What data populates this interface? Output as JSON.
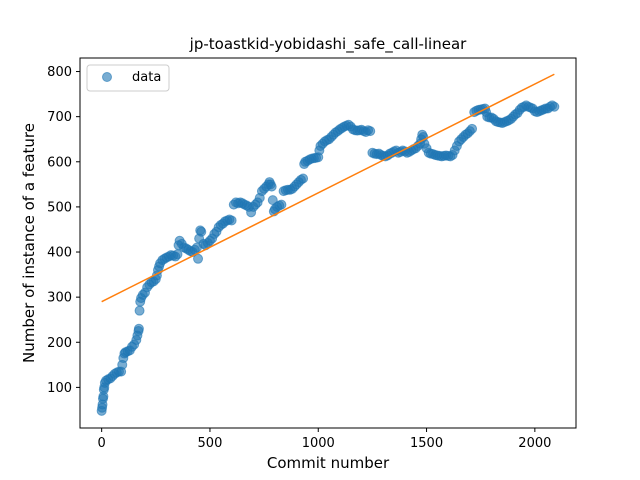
{
  "chart_data": {
    "type": "scatter",
    "title": "jp-toastkid-yobidashi_safe_call-linear",
    "xlabel": "Commit number",
    "ylabel": "Number of instance of a feature",
    "xlim": [
      -100,
      2190
    ],
    "ylim": [
      10,
      830
    ],
    "xticks": [
      0,
      500,
      1000,
      1500,
      2000
    ],
    "yticks": [
      100,
      200,
      300,
      400,
      500,
      600,
      700,
      800
    ],
    "legend": {
      "position": "top-left",
      "entries": [
        "data"
      ]
    },
    "grid": false,
    "colors": {
      "data": "#1f77b4",
      "fit": "#ff7f0e"
    },
    "series": [
      {
        "name": "data",
        "kind": "scatter",
        "points": [
          [
            0,
            48
          ],
          [
            2,
            55
          ],
          [
            4,
            62
          ],
          [
            6,
            75
          ],
          [
            8,
            80
          ],
          [
            10,
            95
          ],
          [
            12,
            100
          ],
          [
            15,
            110
          ],
          [
            20,
            115
          ],
          [
            30,
            118
          ],
          [
            40,
            120
          ],
          [
            50,
            125
          ],
          [
            60,
            130
          ],
          [
            70,
            133
          ],
          [
            80,
            135
          ],
          [
            90,
            135
          ],
          [
            95,
            150
          ],
          [
            100,
            165
          ],
          [
            105,
            175
          ],
          [
            110,
            178
          ],
          [
            120,
            180
          ],
          [
            130,
            182
          ],
          [
            140,
            190
          ],
          [
            150,
            195
          ],
          [
            160,
            205
          ],
          [
            165,
            215
          ],
          [
            170,
            225
          ],
          [
            172,
            230
          ],
          [
            175,
            270
          ],
          [
            178,
            290
          ],
          [
            182,
            298
          ],
          [
            190,
            305
          ],
          [
            200,
            310
          ],
          [
            210,
            322
          ],
          [
            220,
            328
          ],
          [
            230,
            333
          ],
          [
            240,
            335
          ],
          [
            250,
            340
          ],
          [
            255,
            348
          ],
          [
            260,
            360
          ],
          [
            265,
            368
          ],
          [
            270,
            375
          ],
          [
            280,
            382
          ],
          [
            290,
            385
          ],
          [
            300,
            388
          ],
          [
            310,
            390
          ],
          [
            320,
            393
          ],
          [
            330,
            392
          ],
          [
            340,
            390
          ],
          [
            350,
            395
          ],
          [
            355,
            415
          ],
          [
            360,
            425
          ],
          [
            370,
            418
          ],
          [
            380,
            410
          ],
          [
            390,
            408
          ],
          [
            400,
            405
          ],
          [
            410,
            402
          ],
          [
            420,
            400
          ],
          [
            430,
            405
          ],
          [
            440,
            410
          ],
          [
            445,
            385
          ],
          [
            450,
            430
          ],
          [
            455,
            448
          ],
          [
            460,
            445
          ],
          [
            470,
            418
          ],
          [
            480,
            415
          ],
          [
            490,
            420
          ],
          [
            500,
            425
          ],
          [
            510,
            430
          ],
          [
            520,
            440
          ],
          [
            530,
            445
          ],
          [
            540,
            455
          ],
          [
            550,
            460
          ],
          [
            560,
            463
          ],
          [
            570,
            468
          ],
          [
            580,
            470
          ],
          [
            590,
            472
          ],
          [
            600,
            470
          ],
          [
            610,
            505
          ],
          [
            620,
            510
          ],
          [
            630,
            508
          ],
          [
            640,
            510
          ],
          [
            650,
            508
          ],
          [
            660,
            505
          ],
          [
            670,
            503
          ],
          [
            680,
            500
          ],
          [
            690,
            488
          ],
          [
            700,
            500
          ],
          [
            710,
            505
          ],
          [
            720,
            510
          ],
          [
            730,
            520
          ],
          [
            740,
            535
          ],
          [
            750,
            540
          ],
          [
            760,
            545
          ],
          [
            770,
            550
          ],
          [
            775,
            555
          ],
          [
            780,
            550
          ],
          [
            785,
            545
          ],
          [
            790,
            515
          ],
          [
            795,
            490
          ],
          [
            800,
            495
          ],
          [
            810,
            500
          ],
          [
            820,
            503
          ],
          [
            830,
            505
          ],
          [
            840,
            535
          ],
          [
            850,
            537
          ],
          [
            860,
            538
          ],
          [
            870,
            538
          ],
          [
            880,
            540
          ],
          [
            890,
            545
          ],
          [
            900,
            550
          ],
          [
            910,
            555
          ],
          [
            920,
            560
          ],
          [
            930,
            563
          ],
          [
            935,
            595
          ],
          [
            940,
            600
          ],
          [
            950,
            602
          ],
          [
            960,
            605
          ],
          [
            970,
            607
          ],
          [
            980,
            608
          ],
          [
            990,
            609
          ],
          [
            1000,
            610
          ],
          [
            1005,
            625
          ],
          [
            1010,
            635
          ],
          [
            1020,
            640
          ],
          [
            1030,
            645
          ],
          [
            1040,
            648
          ],
          [
            1050,
            650
          ],
          [
            1060,
            655
          ],
          [
            1070,
            660
          ],
          [
            1080,
            665
          ],
          [
            1090,
            668
          ],
          [
            1100,
            672
          ],
          [
            1110,
            675
          ],
          [
            1120,
            678
          ],
          [
            1130,
            680
          ],
          [
            1140,
            682
          ],
          [
            1150,
            678
          ],
          [
            1160,
            672
          ],
          [
            1170,
            670
          ],
          [
            1180,
            669
          ],
          [
            1190,
            670
          ],
          [
            1200,
            671
          ],
          [
            1210,
            668
          ],
          [
            1220,
            666
          ],
          [
            1230,
            670
          ],
          [
            1240,
            668
          ],
          [
            1250,
            620
          ],
          [
            1260,
            618
          ],
          [
            1270,
            617
          ],
          [
            1280,
            618
          ],
          [
            1290,
            615
          ],
          [
            1300,
            613
          ],
          [
            1310,
            612
          ],
          [
            1320,
            614
          ],
          [
            1330,
            618
          ],
          [
            1340,
            620
          ],
          [
            1350,
            623
          ],
          [
            1360,
            625
          ],
          [
            1370,
            620
          ],
          [
            1380,
            622
          ],
          [
            1390,
            625
          ],
          [
            1400,
            623
          ],
          [
            1410,
            620
          ],
          [
            1420,
            622
          ],
          [
            1430,
            625
          ],
          [
            1440,
            628
          ],
          [
            1450,
            630
          ],
          [
            1460,
            635
          ],
          [
            1470,
            640
          ],
          [
            1475,
            650
          ],
          [
            1480,
            660
          ],
          [
            1485,
            655
          ],
          [
            1490,
            640
          ],
          [
            1500,
            630
          ],
          [
            1510,
            620
          ],
          [
            1520,
            618
          ],
          [
            1530,
            617
          ],
          [
            1540,
            615
          ],
          [
            1550,
            614
          ],
          [
            1560,
            613
          ],
          [
            1570,
            612
          ],
          [
            1580,
            613
          ],
          [
            1590,
            614
          ],
          [
            1600,
            613
          ],
          [
            1610,
            612
          ],
          [
            1620,
            615
          ],
          [
            1630,
            625
          ],
          [
            1640,
            635
          ],
          [
            1650,
            645
          ],
          [
            1660,
            650
          ],
          [
            1670,
            655
          ],
          [
            1680,
            660
          ],
          [
            1690,
            663
          ],
          [
            1700,
            668
          ],
          [
            1710,
            673
          ],
          [
            1720,
            710
          ],
          [
            1730,
            713
          ],
          [
            1740,
            715
          ],
          [
            1750,
            716
          ],
          [
            1760,
            717
          ],
          [
            1770,
            718
          ],
          [
            1775,
            710
          ],
          [
            1780,
            700
          ],
          [
            1790,
            698
          ],
          [
            1800,
            698
          ],
          [
            1810,
            695
          ],
          [
            1820,
            690
          ],
          [
            1830,
            688
          ],
          [
            1840,
            687
          ],
          [
            1850,
            686
          ],
          [
            1860,
            688
          ],
          [
            1870,
            690
          ],
          [
            1880,
            692
          ],
          [
            1890,
            695
          ],
          [
            1900,
            700
          ],
          [
            1910,
            705
          ],
          [
            1920,
            708
          ],
          [
            1930,
            715
          ],
          [
            1940,
            720
          ],
          [
            1950,
            722
          ],
          [
            1960,
            725
          ],
          [
            1970,
            722
          ],
          [
            1980,
            720
          ],
          [
            1990,
            718
          ],
          [
            2000,
            712
          ],
          [
            2010,
            710
          ],
          [
            2020,
            712
          ],
          [
            2030,
            714
          ],
          [
            2040,
            716
          ],
          [
            2050,
            718
          ],
          [
            2060,
            718
          ],
          [
            2070,
            722
          ],
          [
            2080,
            725
          ],
          [
            2090,
            722
          ]
        ]
      },
      {
        "kind": "line",
        "points": [
          [
            0,
            290
          ],
          [
            2090,
            794
          ]
        ]
      }
    ]
  }
}
